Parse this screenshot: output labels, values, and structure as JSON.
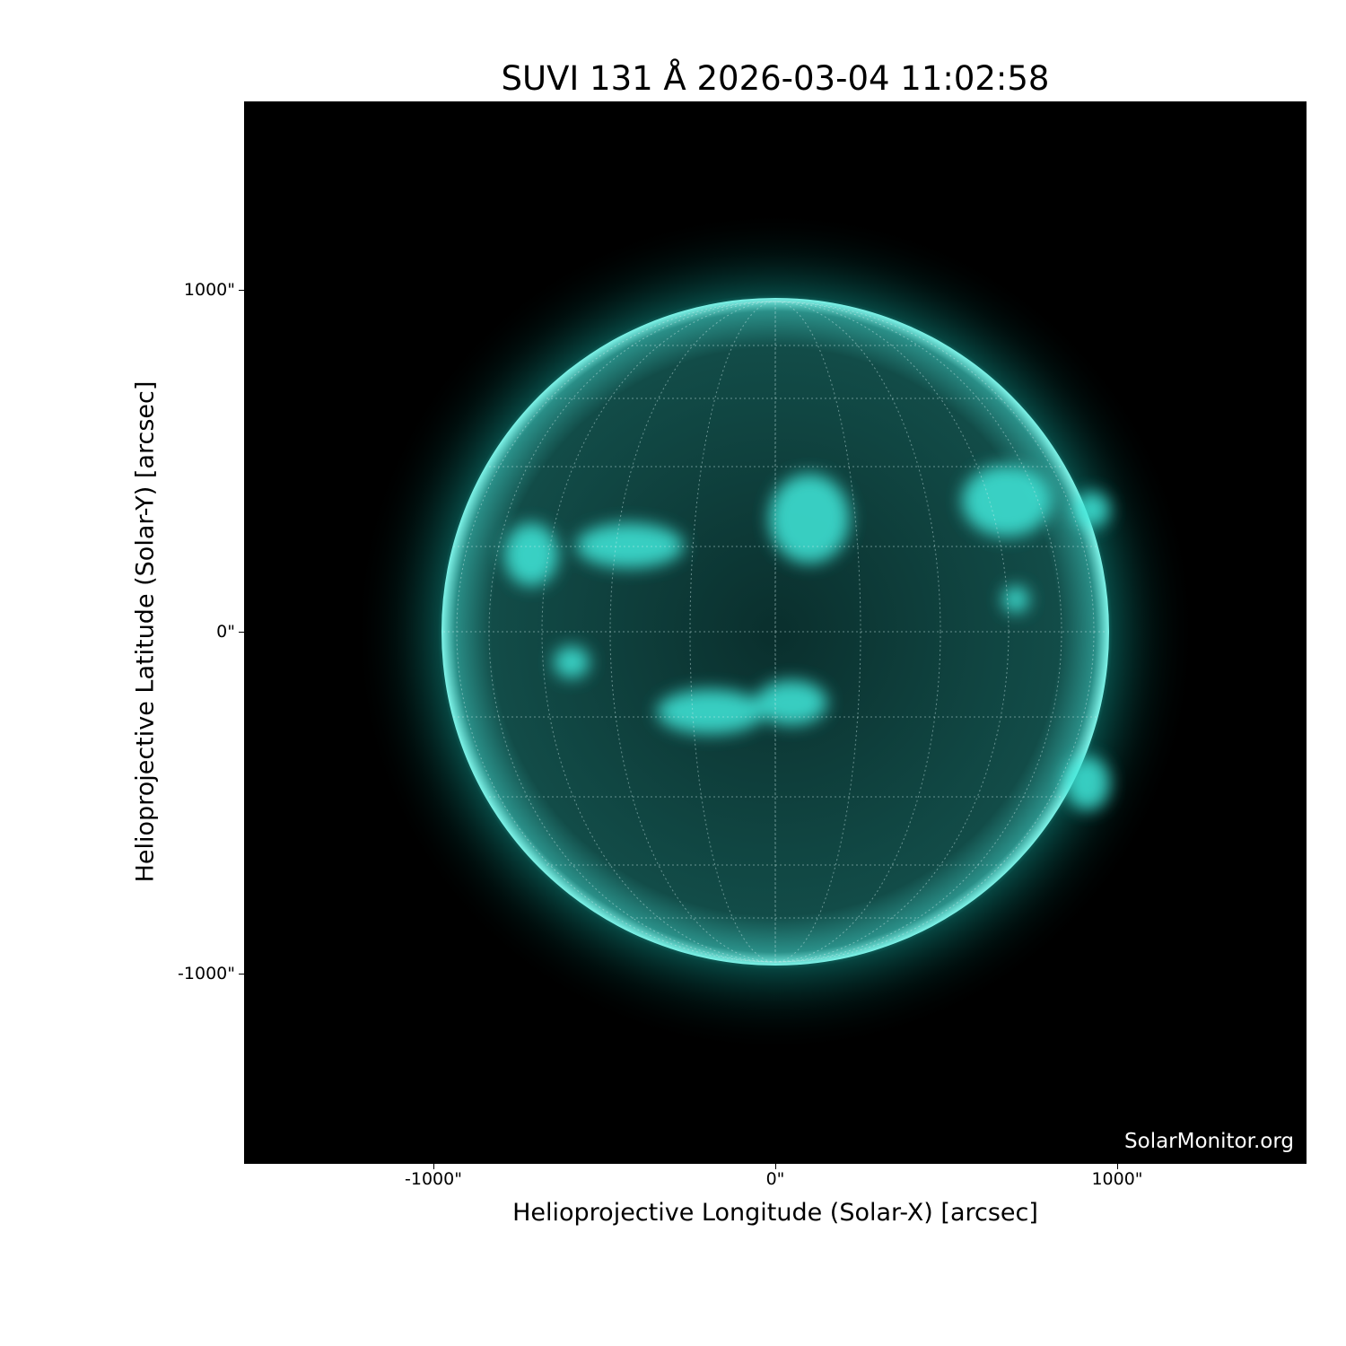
{
  "title": "SUVI 131 Å 2026-03-04 11:02:58",
  "xlabel": "Helioprojective Longitude (Solar-X) [arcsec]",
  "ylabel": "Helioprojective Latitude (Solar-Y) [arcsec]",
  "x_ticks": [
    "-1000\"",
    "0\"",
    "1000\""
  ],
  "y_ticks": [
    "1000\"",
    "0\"",
    "-1000\""
  ],
  "watermark": "SolarMonitor.org",
  "colors": {
    "sun": "#00e0d0",
    "background": "#000000"
  }
}
